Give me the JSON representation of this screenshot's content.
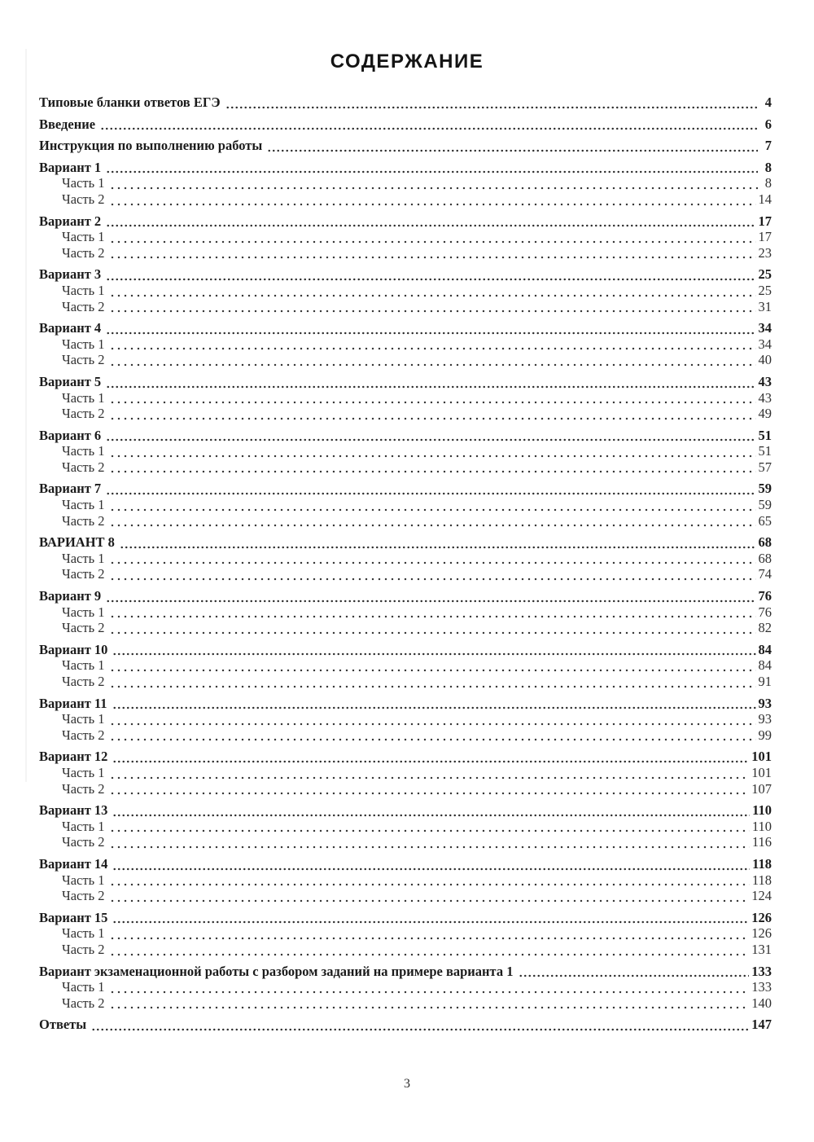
{
  "page": {
    "title": "СОДЕРЖАНИЕ",
    "footer_page_number": "3"
  },
  "toc": {
    "entries": [
      {
        "label": "Типовые бланки ответов ЕГЭ",
        "page": "4",
        "level": 0,
        "bold": true
      },
      {
        "label": "Введение",
        "page": "6",
        "level": 0,
        "bold": true
      },
      {
        "label": "Инструкция по выполнению работы",
        "page": "7",
        "level": 0,
        "bold": true
      },
      {
        "label": "Вариант 1",
        "page": "8",
        "level": 0,
        "bold": true
      },
      {
        "label": "Часть 1",
        "page": "8",
        "level": 1,
        "bold": false
      },
      {
        "label": "Часть 2",
        "page": "14",
        "level": 1,
        "bold": false
      },
      {
        "label": "Вариант 2",
        "page": "17",
        "level": 0,
        "bold": true
      },
      {
        "label": "Часть 1",
        "page": "17",
        "level": 1,
        "bold": false
      },
      {
        "label": "Часть 2",
        "page": "23",
        "level": 1,
        "bold": false
      },
      {
        "label": "Вариант 3",
        "page": "25",
        "level": 0,
        "bold": true
      },
      {
        "label": "Часть 1",
        "page": "25",
        "level": 1,
        "bold": false
      },
      {
        "label": "Часть 2",
        "page": "31",
        "level": 1,
        "bold": false
      },
      {
        "label": "Вариант 4",
        "page": "34",
        "level": 0,
        "bold": true
      },
      {
        "label": "Часть 1",
        "page": "34",
        "level": 1,
        "bold": false
      },
      {
        "label": "Часть 2",
        "page": "40",
        "level": 1,
        "bold": false
      },
      {
        "label": "Вариант 5",
        "page": "43",
        "level": 0,
        "bold": true
      },
      {
        "label": "Часть 1",
        "page": "43",
        "level": 1,
        "bold": false
      },
      {
        "label": "Часть 2",
        "page": "49",
        "level": 1,
        "bold": false
      },
      {
        "label": "Вариант 6",
        "page": "51",
        "level": 0,
        "bold": true
      },
      {
        "label": "Часть 1",
        "page": "51",
        "level": 1,
        "bold": false
      },
      {
        "label": "Часть 2",
        "page": "57",
        "level": 1,
        "bold": false
      },
      {
        "label": "Вариант 7",
        "page": "59",
        "level": 0,
        "bold": true
      },
      {
        "label": "Часть 1",
        "page": "59",
        "level": 1,
        "bold": false
      },
      {
        "label": "Часть 2",
        "page": "65",
        "level": 1,
        "bold": false
      },
      {
        "label": "ВАРИАНТ 8",
        "page": "68",
        "level": 0,
        "bold": true
      },
      {
        "label": "Часть 1",
        "page": "68",
        "level": 1,
        "bold": false
      },
      {
        "label": "Часть 2",
        "page": "74",
        "level": 1,
        "bold": false
      },
      {
        "label": "Вариант 9",
        "page": "76",
        "level": 0,
        "bold": true
      },
      {
        "label": "Часть 1",
        "page": "76",
        "level": 1,
        "bold": false
      },
      {
        "label": "Часть 2",
        "page": "82",
        "level": 1,
        "bold": false
      },
      {
        "label": "Вариант 10",
        "page": "84",
        "level": 0,
        "bold": true
      },
      {
        "label": "Часть 1",
        "page": "84",
        "level": 1,
        "bold": false
      },
      {
        "label": "Часть 2",
        "page": "91",
        "level": 1,
        "bold": false
      },
      {
        "label": "Вариант 11",
        "page": "93",
        "level": 0,
        "bold": true
      },
      {
        "label": "Часть 1",
        "page": "93",
        "level": 1,
        "bold": false
      },
      {
        "label": "Часть 2",
        "page": "99",
        "level": 1,
        "bold": false
      },
      {
        "label": "Вариант 12",
        "page": "101",
        "level": 0,
        "bold": true
      },
      {
        "label": "Часть 1",
        "page": "101",
        "level": 1,
        "bold": false
      },
      {
        "label": "Часть 2",
        "page": "107",
        "level": 1,
        "bold": false
      },
      {
        "label": "Вариант 13",
        "page": "110",
        "level": 0,
        "bold": true
      },
      {
        "label": "Часть 1",
        "page": "110",
        "level": 1,
        "bold": false
      },
      {
        "label": "Часть 2",
        "page": "116",
        "level": 1,
        "bold": false
      },
      {
        "label": "Вариант 14",
        "page": "118",
        "level": 0,
        "bold": true
      },
      {
        "label": "Часть 1",
        "page": "118",
        "level": 1,
        "bold": false
      },
      {
        "label": "Часть 2",
        "page": "124",
        "level": 1,
        "bold": false
      },
      {
        "label": "Вариант 15",
        "page": "126",
        "level": 0,
        "bold": true
      },
      {
        "label": "Часть 1",
        "page": "126",
        "level": 1,
        "bold": false
      },
      {
        "label": "Часть 2",
        "page": "131",
        "level": 1,
        "bold": false
      },
      {
        "label": "Вариант экзаменационной работы с разбором заданий на примере варианта 1",
        "page": "133",
        "level": 0,
        "bold": true
      },
      {
        "label": "Часть 1",
        "page": "133",
        "level": 1,
        "bold": false
      },
      {
        "label": "Часть 2",
        "page": "140",
        "level": 1,
        "bold": false
      },
      {
        "label": "Ответы",
        "page": "147",
        "level": 0,
        "bold": true
      }
    ]
  }
}
